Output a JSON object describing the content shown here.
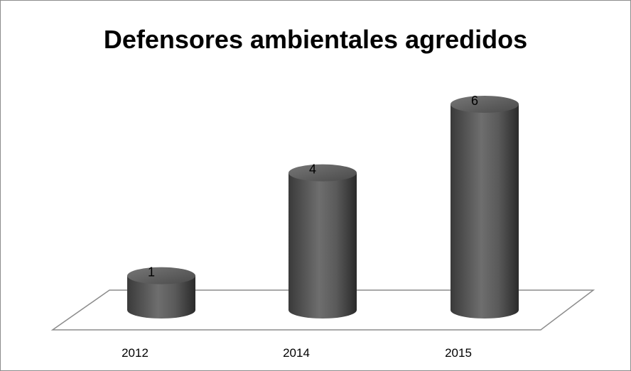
{
  "chart_data": {
    "type": "bar",
    "style": "3d-cylinder",
    "title": "Defensores ambientales agredidos",
    "categories": [
      "2012",
      "2014",
      "2015"
    ],
    "values": [
      1,
      4,
      6
    ],
    "data_labels": [
      "1",
      "4",
      "6"
    ],
    "xlabel": "",
    "ylabel": "",
    "ylim": [
      0,
      6
    ],
    "grid": false,
    "legend": "none",
    "colors": {
      "bar_dark": "#2e2e2e",
      "bar_mid": "#6e6e6e",
      "bar_light": "#9a9a9a",
      "floor_stroke": "#8c8c8c",
      "border": "#8c8c8c"
    }
  }
}
